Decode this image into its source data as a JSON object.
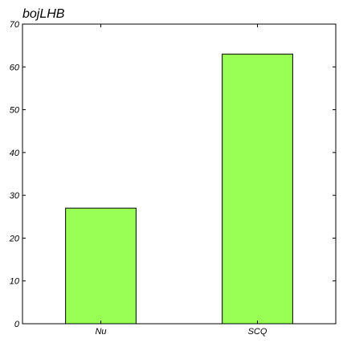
{
  "chart_data": {
    "type": "bar",
    "title": "bojLHB",
    "xlabel": "",
    "ylabel": "",
    "categories": [
      "Nu",
      "SCQ"
    ],
    "values": [
      27,
      63
    ],
    "ylim": [
      0,
      70
    ],
    "yticks": [
      0,
      10,
      20,
      30,
      40,
      50,
      60,
      70
    ],
    "grid": false,
    "legend": "none",
    "colors": {
      "bar_fill": "#99ff55",
      "bar_stroke": "#000000",
      "axes": "#000000",
      "background": "#ffffff"
    }
  }
}
